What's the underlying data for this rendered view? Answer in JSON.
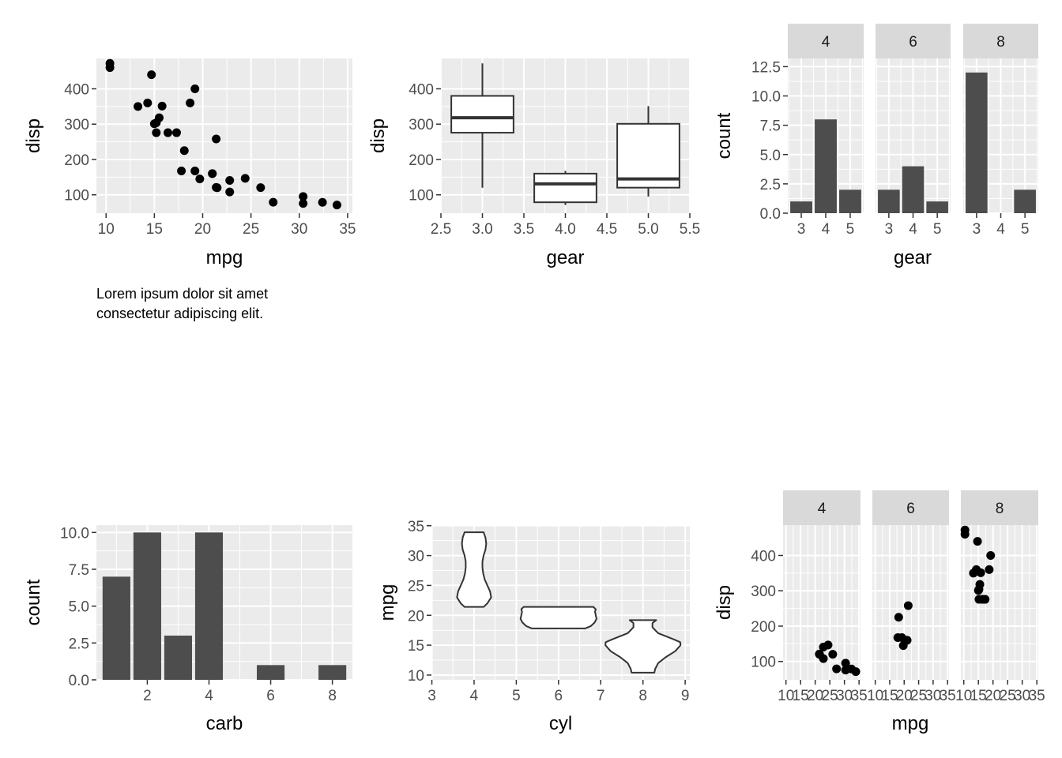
{
  "caption": {
    "line1": "Lorem ipsum dolor sit amet",
    "line2": "consectetur adipiscing elit."
  },
  "colors": {
    "panel": "#ebebeb",
    "grid": "#ffffff",
    "strip": "#d9d9d9",
    "bar": "#4d4d4d",
    "point": "#000000",
    "axis_text": "#4d4d4d"
  },
  "chart_data": [
    {
      "type": "scatter",
      "xlabel": "mpg",
      "ylabel": "disp",
      "xlim": [
        9,
        35.5
      ],
      "ylim": [
        48,
        486
      ],
      "xticks": [
        10,
        15,
        20,
        25,
        30,
        35
      ],
      "yticks": [
        100,
        200,
        300,
        400
      ],
      "xtick_labels": [
        "10",
        "15",
        "20",
        "25",
        "30",
        "35"
      ],
      "ytick_labels": [
        "100",
        "200",
        "300",
        "400"
      ],
      "x": [
        21,
        21,
        22.8,
        21.4,
        18.7,
        18.1,
        14.3,
        24.4,
        22.8,
        19.2,
        17.8,
        16.4,
        17.3,
        15.2,
        10.4,
        10.4,
        14.7,
        32.4,
        30.4,
        33.9,
        21.5,
        15.5,
        15.2,
        13.3,
        19.2,
        27.3,
        26,
        30.4,
        15.8,
        19.7,
        15,
        21.4
      ],
      "y": [
        160,
        160,
        108,
        258,
        360,
        225,
        360,
        146.7,
        140.8,
        167.6,
        167.6,
        275.8,
        275.8,
        275.8,
        472,
        460,
        440,
        78.7,
        75.7,
        71.1,
        120.1,
        318,
        304,
        350,
        400,
        79,
        120.3,
        95.1,
        351,
        145,
        301,
        121
      ]
    },
    {
      "type": "box",
      "xlabel": "gear",
      "ylabel": "disp",
      "xlim": [
        2.5,
        5.5
      ],
      "ylim": [
        48,
        486
      ],
      "xticks": [
        2.5,
        3,
        3.5,
        4,
        4.5,
        5,
        5.5
      ],
      "yticks": [
        100,
        200,
        300,
        400
      ],
      "xtick_labels": [
        "2.5",
        "3.0",
        "3.5",
        "4.0",
        "4.5",
        "5.0",
        "5.5"
      ],
      "ytick_labels": [
        "100",
        "200",
        "300",
        "400"
      ],
      "boxes": [
        {
          "x": 3,
          "min": 120.1,
          "q1": 275.8,
          "median": 318,
          "q3": 380,
          "max": 472
        },
        {
          "x": 4,
          "min": 71.1,
          "q1": 78.9,
          "median": 130.9,
          "q3": 160,
          "max": 167.6
        },
        {
          "x": 5,
          "min": 95.1,
          "q1": 120.3,
          "median": 145,
          "q3": 301,
          "max": 351
        }
      ]
    },
    {
      "type": "bar",
      "xlabel": "gear",
      "ylabel": "count",
      "ylim": [
        0,
        13.2
      ],
      "yticks": [
        0,
        2.5,
        5,
        7.5,
        10,
        12.5
      ],
      "ytick_labels": [
        "0.0",
        "2.5",
        "5.0",
        "7.5",
        "10.0",
        "12.5"
      ],
      "xlim": [
        2.45,
        5.55
      ],
      "xticks": [
        3,
        4,
        5
      ],
      "xtick_labels": [
        "3",
        "4",
        "5"
      ],
      "facets": [
        {
          "label": "4",
          "categories": [
            3,
            4,
            5
          ],
          "values": [
            1,
            8,
            2
          ]
        },
        {
          "label": "6",
          "categories": [
            3,
            4,
            5
          ],
          "values": [
            2,
            4,
            1
          ]
        },
        {
          "label": "8",
          "categories": [
            3,
            4,
            5
          ],
          "values": [
            12,
            0,
            2
          ]
        }
      ]
    },
    {
      "type": "bar",
      "xlabel": "carb",
      "ylabel": "count",
      "xlim": [
        0.35,
        8.65
      ],
      "ylim": [
        0,
        10.5
      ],
      "xticks": [
        2,
        4,
        6,
        8
      ],
      "xtick_labels": [
        "2",
        "4",
        "6",
        "8"
      ],
      "yticks": [
        0,
        2.5,
        5,
        7.5,
        10
      ],
      "ytick_labels": [
        "0.0",
        "2.5",
        "5.0",
        "7.5",
        "10.0"
      ],
      "categories": [
        1,
        2,
        3,
        4,
        6,
        8
      ],
      "values": [
        7,
        10,
        3,
        10,
        1,
        1
      ]
    },
    {
      "type": "violin",
      "xlabel": "cyl",
      "ylabel": "mpg",
      "xlim": [
        2.99,
        9.11
      ],
      "ylim": [
        9.2,
        35.1
      ],
      "xticks": [
        3,
        4,
        5,
        6,
        7,
        8,
        9
      ],
      "xtick_labels": [
        "3",
        "4",
        "5",
        "6",
        "7",
        "8",
        "9"
      ],
      "yticks": [
        10,
        15,
        20,
        25,
        30,
        35
      ],
      "ytick_labels": [
        "10",
        "15",
        "20",
        "25",
        "30",
        "35"
      ],
      "violins": [
        {
          "x": 4,
          "y": [
            21.4,
            22,
            23,
            24,
            25,
            26,
            27,
            28,
            29,
            30,
            31,
            32,
            33,
            33.9
          ],
          "w": [
            0.25,
            0.35,
            0.45,
            0.42,
            0.35,
            0.28,
            0.24,
            0.22,
            0.22,
            0.25,
            0.3,
            0.32,
            0.3,
            0.25
          ]
        },
        {
          "x": 6,
          "y": [
            17.8,
            18.2,
            18.8,
            19.4,
            20,
            20.6,
            21,
            21.4
          ],
          "w": [
            0.7,
            0.85,
            0.95,
            1.0,
            0.98,
            0.96,
            0.98,
            0.92
          ]
        },
        {
          "x": 8,
          "y": [
            10.4,
            11,
            12,
            13,
            14,
            15,
            15.5,
            16,
            17,
            18,
            18.7,
            19.2
          ],
          "w": [
            0.3,
            0.32,
            0.4,
            0.6,
            0.85,
            0.99,
            0.98,
            0.8,
            0.4,
            0.25,
            0.25,
            0.35
          ]
        }
      ]
    },
    {
      "type": "scatter",
      "xlabel": "mpg",
      "ylabel": "disp",
      "xlim": [
        9,
        35.5
      ],
      "ylim": [
        48,
        486
      ],
      "xticks": [
        10,
        15,
        20,
        25,
        30,
        35
      ],
      "xtick_labels": [
        "10",
        "15",
        "20",
        "25",
        "30",
        "35"
      ],
      "yticks": [
        100,
        200,
        300,
        400
      ],
      "ytick_labels": [
        "100",
        "200",
        "300",
        "400"
      ],
      "facets": [
        {
          "label": "4",
          "x": [
            22.8,
            24.4,
            22.8,
            32.4,
            30.4,
            33.9,
            21.5,
            27.3,
            26,
            30.4,
            21.4
          ],
          "y": [
            108,
            146.7,
            140.8,
            78.7,
            75.7,
            71.1,
            120.1,
            79,
            120.3,
            95.1,
            121
          ]
        },
        {
          "label": "6",
          "x": [
            21,
            21,
            21.4,
            18.1,
            19.2,
            17.8,
            19.7
          ],
          "y": [
            160,
            160,
            258,
            225,
            167.6,
            167.6,
            145
          ]
        },
        {
          "label": "8",
          "x": [
            18.7,
            14.3,
            16.4,
            17.3,
            15.2,
            10.4,
            10.4,
            14.7,
            15.5,
            15.2,
            13.3,
            19.2,
            15.8,
            15
          ],
          "y": [
            360,
            360,
            275.8,
            275.8,
            275.8,
            472,
            460,
            440,
            318,
            304,
            350,
            400,
            351,
            301
          ]
        }
      ]
    }
  ]
}
